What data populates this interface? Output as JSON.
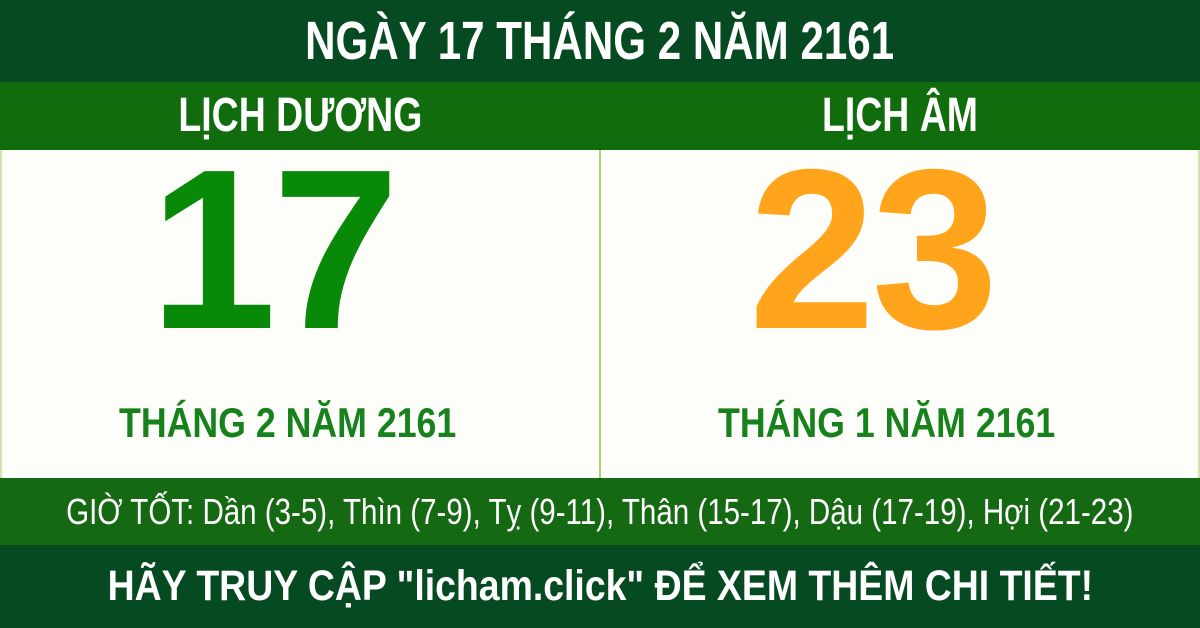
{
  "header": {
    "title": "NGÀY 17 THÁNG 2 NĂM 2161"
  },
  "solar": {
    "label": "LỊCH DƯƠNG",
    "day": "17",
    "month_year": "THÁNG 2 NĂM 2161"
  },
  "lunar": {
    "label": "LỊCH ÂM",
    "day": "23",
    "month_year": "THÁNG 1 NĂM 2161"
  },
  "good_hours": {
    "text": "GIỜ TỐT: Dần (3-5), Thìn (7-9), Tỵ (9-11), Thân (15-17), Dậu (17-19), Hợi (21-23)"
  },
  "footer": {
    "text": "HÃY TRUY CẬP \"licham.click\" ĐỂ XEM THÊM CHI TIẾT!"
  },
  "colors": {
    "dark_green": "#064a21",
    "bar_green": "#116c0e",
    "hours_green": "#156913",
    "solar_day_green": "#088a08",
    "month_text_green": "#17821c",
    "lunar_day_orange": "#ffa41b",
    "divider_light_green": "#a8d677",
    "edge_light_green": "#cde4ae",
    "panel_white": "#fdfdfa"
  }
}
